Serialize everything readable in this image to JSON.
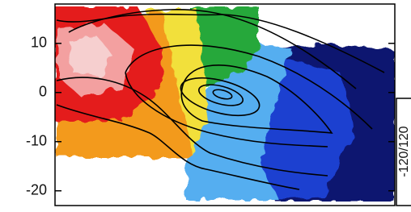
{
  "chart_data": {
    "type": "image",
    "ylim": [
      -23,
      18
    ],
    "yticks": [
      10,
      0,
      -10,
      -20
    ],
    "colorbar_label": "-120/120"
  }
}
